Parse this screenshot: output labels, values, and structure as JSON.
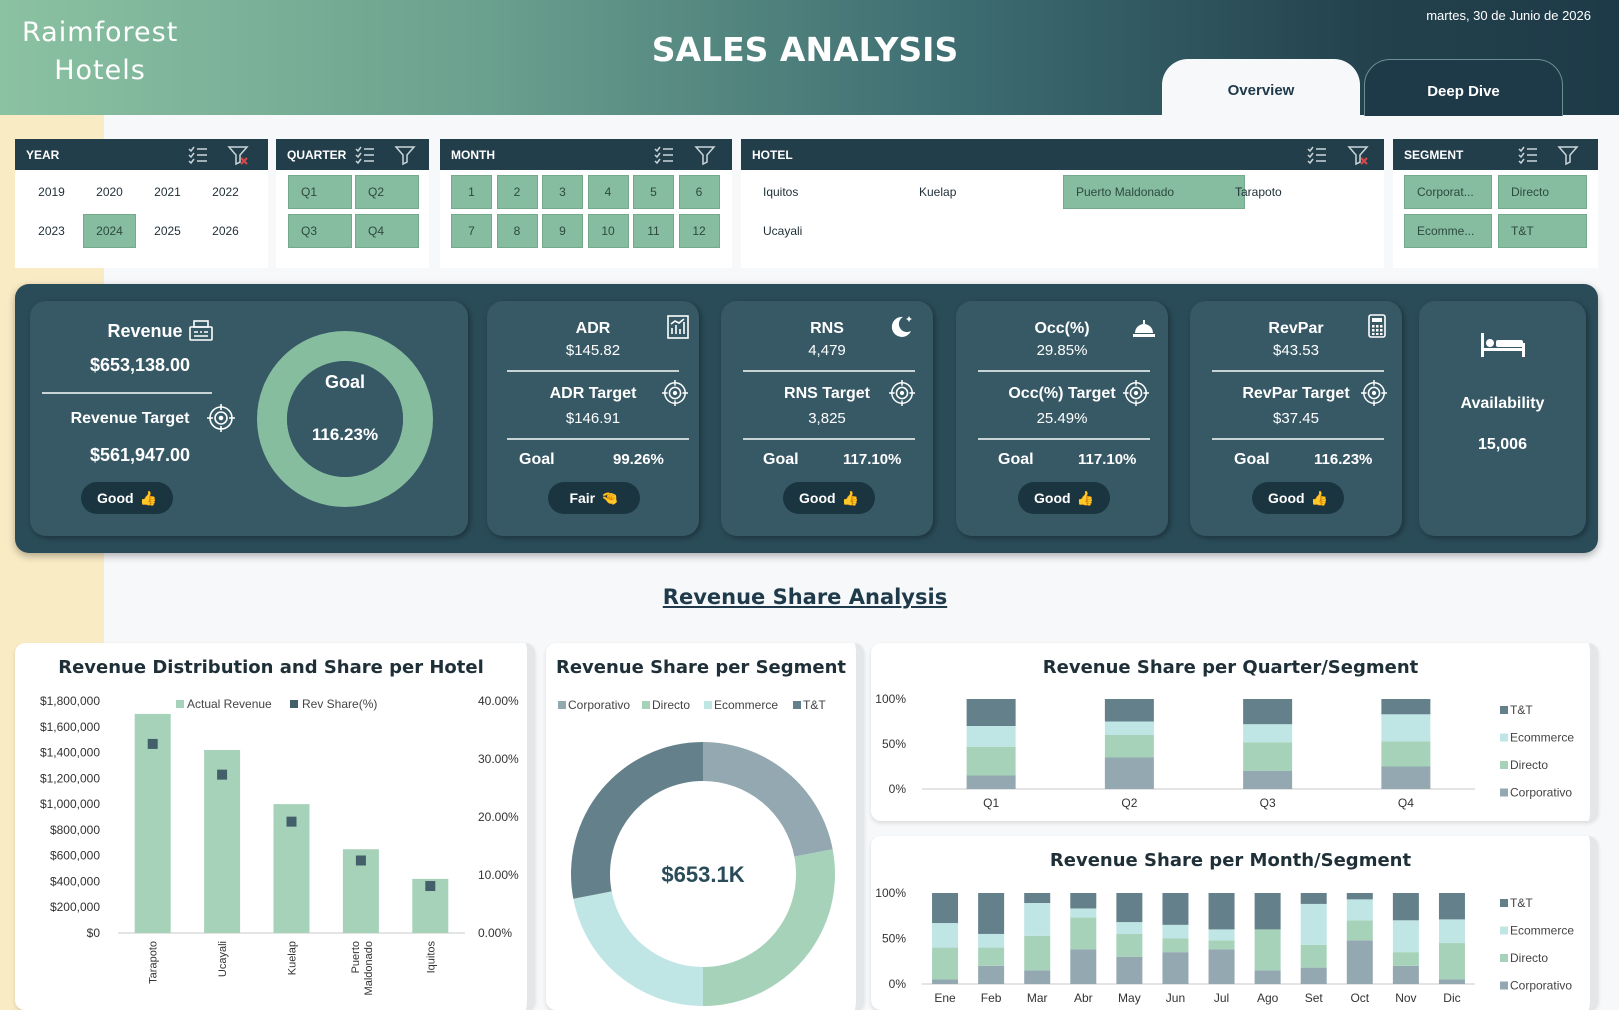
{
  "header": {
    "logo_line1": "Raimforest",
    "logo_line2": "Hotels",
    "title": "SALES ANALYSIS",
    "date": "martes, 30 de Junio de 2026",
    "tabs": [
      {
        "label": "Overview",
        "active": true
      },
      {
        "label": "Deep Dive",
        "active": false
      }
    ]
  },
  "slicers": {
    "year": {
      "title": "YEAR",
      "options": [
        {
          "label": "2019",
          "selected": false
        },
        {
          "label": "2020",
          "selected": false
        },
        {
          "label": "2021",
          "selected": false
        },
        {
          "label": "2022",
          "selected": false
        },
        {
          "label": "2023",
          "selected": false
        },
        {
          "label": "2024",
          "selected": true
        },
        {
          "label": "2025",
          "selected": false
        },
        {
          "label": "2026",
          "selected": false
        }
      ]
    },
    "quarter": {
      "title": "QUARTER",
      "options": [
        {
          "label": "Q1",
          "selected": true
        },
        {
          "label": "Q2",
          "selected": true
        },
        {
          "label": "Q3",
          "selected": true
        },
        {
          "label": "Q4",
          "selected": true
        }
      ]
    },
    "month": {
      "title": "MONTH",
      "options": [
        {
          "label": "1",
          "selected": true
        },
        {
          "label": "2",
          "selected": true
        },
        {
          "label": "3",
          "selected": true
        },
        {
          "label": "4",
          "selected": true
        },
        {
          "label": "5",
          "selected": true
        },
        {
          "label": "6",
          "selected": true
        },
        {
          "label": "7",
          "selected": true
        },
        {
          "label": "8",
          "selected": true
        },
        {
          "label": "9",
          "selected": true
        },
        {
          "label": "10",
          "selected": true
        },
        {
          "label": "11",
          "selected": true
        },
        {
          "label": "12",
          "selected": true
        }
      ]
    },
    "hotel": {
      "title": "HOTEL",
      "options": [
        {
          "label": "Iquitos",
          "selected": false
        },
        {
          "label": "Kuelap",
          "selected": false
        },
        {
          "label": "Puerto Maldonado",
          "selected": true
        },
        {
          "label": "Tarapoto",
          "selected": false
        },
        {
          "label": "Ucayali",
          "selected": false
        }
      ]
    },
    "segment": {
      "title": "SEGMENT",
      "options": [
        {
          "label": "Corporat...",
          "selected": true
        },
        {
          "label": "Directo",
          "selected": true
        },
        {
          "label": "Ecomme...",
          "selected": true
        },
        {
          "label": "T&T",
          "selected": true
        }
      ]
    }
  },
  "kpis": {
    "revenue": {
      "label": "Revenue",
      "value": "$653,138.00",
      "target_label": "Revenue Target",
      "target": "$561,947.00",
      "goal_label": "Goal",
      "goal": "116.23%",
      "goal_fraction": 1.1623,
      "status": "Good"
    },
    "adr": {
      "label": "ADR",
      "value": "$145.82",
      "target_label": "ADR Target",
      "target": "$146.91",
      "goal_label": "Goal",
      "goal": "99.26%",
      "status": "Fair"
    },
    "rns": {
      "label": "RNS",
      "value": "4,479",
      "target_label": "RNS Target",
      "target": "3,825",
      "goal_label": "Goal",
      "goal": "117.10%",
      "status": "Good"
    },
    "occ": {
      "label": "Occ(%)",
      "value": "29.85%",
      "target_label": "Occ(%) Target",
      "target": "25.49%",
      "goal_label": "Goal",
      "goal": "117.10%",
      "status": "Good"
    },
    "revpar": {
      "label": "RevPar",
      "value": "$43.53",
      "target_label": "RevPar Target",
      "target": "$37.45",
      "goal_label": "Goal",
      "goal": "116.23%",
      "status": "Good"
    },
    "availability": {
      "label": "Availability",
      "value": "15,006"
    }
  },
  "section_title": "Revenue Share Analysis",
  "colors": {
    "corporativo": "#93a8b0",
    "directo": "#a6d2b9",
    "ecommerce": "#c0e5e5",
    "tt": "#64808b",
    "bar": "#a6d2b9",
    "marker": "#425f6a",
    "dark": "#233e4b",
    "selected": "#86bc9f"
  },
  "chart_data": [
    {
      "type": "bar",
      "title": "Revenue Distribution and Share per Hotel",
      "categories": [
        "Tarapoto",
        "Ucayali",
        "Kuelap",
        "Puerto Maldonado",
        "Iquitos"
      ],
      "series": [
        {
          "name": "Actual Revenue",
          "axis": "left",
          "values": [
            1700000,
            1420000,
            1000000,
            650000,
            420000
          ]
        },
        {
          "name": "Rev Share(%)",
          "axis": "right",
          "type": "scatter",
          "values": [
            32.6,
            27.3,
            19.2,
            12.5,
            8.1
          ]
        }
      ],
      "ylim": [
        0,
        1800000
      ],
      "y_ticks": [
        "$0",
        "$200,000",
        "$400,000",
        "$600,000",
        "$800,000",
        "$1,000,000",
        "$1,200,000",
        "$1,400,000",
        "$1,600,000",
        "$1,800,000"
      ],
      "y2lim": [
        0,
        40
      ],
      "y2_ticks": [
        "0.00%",
        "10.00%",
        "20.00%",
        "30.00%",
        "40.00%"
      ],
      "legend": "top"
    },
    {
      "type": "pie",
      "title": "Revenue Share per Segment",
      "center_label": "$653.1K",
      "labels": [
        "Corporativo",
        "Directo",
        "Ecommerce",
        "T&T"
      ],
      "values": [
        22,
        28,
        22,
        28
      ],
      "legend": "top"
    },
    {
      "type": "bar",
      "title": "Revenue Share per Quarter/Segment",
      "categories": [
        "Q1",
        "Q2",
        "Q3",
        "Q4"
      ],
      "series": [
        {
          "name": "Corporativo",
          "values": [
            15,
            35,
            20,
            25
          ]
        },
        {
          "name": "Directo",
          "values": [
            32,
            25,
            32,
            28
          ]
        },
        {
          "name": "Ecommerce",
          "values": [
            23,
            15,
            20,
            30
          ]
        },
        {
          "name": "T&T",
          "values": [
            30,
            25,
            28,
            17
          ]
        }
      ],
      "y_ticks": [
        "0%",
        "50%",
        "100%"
      ],
      "legend": "right"
    },
    {
      "type": "bar",
      "title": "Revenue Share per Month/Segment",
      "categories": [
        "Ene",
        "Feb",
        "Mar",
        "Abr",
        "May",
        "Jun",
        "Jul",
        "Ago",
        "Set",
        "Oct",
        "Nov",
        "Dic"
      ],
      "series": [
        {
          "name": "Corporativo",
          "values": [
            5,
            20,
            15,
            38,
            30,
            35,
            38,
            15,
            18,
            48,
            20,
            5
          ]
        },
        {
          "name": "Directo",
          "values": [
            35,
            20,
            38,
            35,
            25,
            15,
            10,
            45,
            25,
            22,
            15,
            40
          ]
        },
        {
          "name": "Ecommerce",
          "values": [
            27,
            15,
            36,
            10,
            13,
            15,
            12,
            0,
            45,
            23,
            35,
            26
          ]
        },
        {
          "name": "T&T",
          "values": [
            33,
            45,
            11,
            17,
            32,
            35,
            40,
            40,
            12,
            7,
            30,
            29
          ]
        }
      ],
      "y_ticks": [
        "0%",
        "50%",
        "100%"
      ],
      "legend": "right"
    }
  ]
}
